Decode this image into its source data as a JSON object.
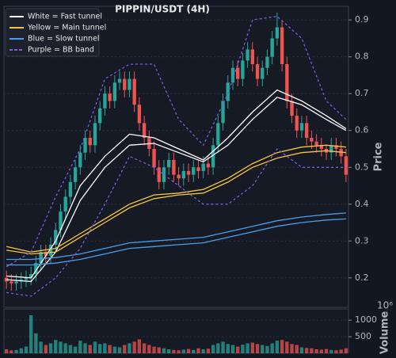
{
  "chart_data": [
    {
      "type": "candlestick",
      "title": "PIPPIN/USDT (4H)",
      "y_label": "Price",
      "up_color": "#26a69a",
      "down_color": "#ef5350",
      "ylim": [
        0.12,
        0.937
      ],
      "yticks": [
        0.2,
        0.3,
        0.4,
        0.5,
        0.6,
        0.7,
        0.8,
        0.9
      ],
      "grid": true,
      "legend": "upper left",
      "open": [
        0.2,
        0.19,
        0.185,
        0.19,
        0.195,
        0.2,
        0.21,
        0.24,
        0.27,
        0.26,
        0.29,
        0.33,
        0.38,
        0.42,
        0.46,
        0.5,
        0.54,
        0.58,
        0.56,
        0.62,
        0.66,
        0.7,
        0.68,
        0.73,
        0.74,
        0.71,
        0.74,
        0.67,
        0.62,
        0.58,
        0.55,
        0.5,
        0.46,
        0.5,
        0.52,
        0.48,
        0.47,
        0.49,
        0.48,
        0.5,
        0.49,
        0.51,
        0.5,
        0.56,
        0.62,
        0.68,
        0.73,
        0.77,
        0.74,
        0.79,
        0.82,
        0.78,
        0.74,
        0.77,
        0.8,
        0.85,
        0.88,
        0.78,
        0.68,
        0.64,
        0.6,
        0.62,
        0.58,
        0.57,
        0.56,
        0.55,
        0.54,
        0.56,
        0.55,
        0.53
      ],
      "high": [
        0.22,
        0.21,
        0.21,
        0.215,
        0.22,
        0.23,
        0.26,
        0.29,
        0.29,
        0.31,
        0.35,
        0.4,
        0.44,
        0.48,
        0.52,
        0.56,
        0.6,
        0.6,
        0.64,
        0.68,
        0.72,
        0.72,
        0.75,
        0.76,
        0.76,
        0.76,
        0.76,
        0.69,
        0.64,
        0.6,
        0.57,
        0.52,
        0.52,
        0.54,
        0.54,
        0.5,
        0.51,
        0.51,
        0.52,
        0.52,
        0.53,
        0.53,
        0.58,
        0.64,
        0.7,
        0.75,
        0.79,
        0.79,
        0.81,
        0.84,
        0.84,
        0.8,
        0.79,
        0.82,
        0.87,
        0.92,
        0.9,
        0.8,
        0.7,
        0.66,
        0.64,
        0.64,
        0.6,
        0.59,
        0.58,
        0.56,
        0.58,
        0.58,
        0.57,
        0.55
      ],
      "low": [
        0.17,
        0.165,
        0.165,
        0.17,
        0.175,
        0.18,
        0.19,
        0.22,
        0.24,
        0.24,
        0.27,
        0.31,
        0.36,
        0.4,
        0.44,
        0.48,
        0.52,
        0.54,
        0.54,
        0.6,
        0.64,
        0.66,
        0.66,
        0.71,
        0.69,
        0.69,
        0.65,
        0.6,
        0.56,
        0.53,
        0.48,
        0.44,
        0.44,
        0.48,
        0.46,
        0.45,
        0.45,
        0.46,
        0.46,
        0.47,
        0.47,
        0.48,
        0.48,
        0.54,
        0.6,
        0.66,
        0.71,
        0.72,
        0.72,
        0.77,
        0.76,
        0.72,
        0.72,
        0.75,
        0.78,
        0.83,
        0.76,
        0.66,
        0.62,
        0.58,
        0.58,
        0.56,
        0.55,
        0.54,
        0.53,
        0.52,
        0.52,
        0.53,
        0.51,
        0.46
      ],
      "close": [
        0.19,
        0.185,
        0.19,
        0.195,
        0.2,
        0.21,
        0.24,
        0.27,
        0.26,
        0.29,
        0.33,
        0.38,
        0.42,
        0.46,
        0.5,
        0.54,
        0.58,
        0.56,
        0.62,
        0.66,
        0.7,
        0.68,
        0.73,
        0.74,
        0.71,
        0.74,
        0.67,
        0.62,
        0.58,
        0.55,
        0.5,
        0.46,
        0.5,
        0.52,
        0.48,
        0.47,
        0.49,
        0.48,
        0.5,
        0.49,
        0.51,
        0.5,
        0.56,
        0.62,
        0.68,
        0.73,
        0.77,
        0.74,
        0.79,
        0.82,
        0.78,
        0.74,
        0.77,
        0.8,
        0.85,
        0.88,
        0.78,
        0.68,
        0.64,
        0.6,
        0.62,
        0.58,
        0.57,
        0.56,
        0.55,
        0.54,
        0.56,
        0.55,
        0.53,
        0.48
      ],
      "line_x": [
        0,
        5,
        10,
        15,
        20,
        25,
        30,
        35,
        40,
        45,
        50,
        55,
        60,
        65,
        69
      ],
      "series": [
        {
          "name": "White = Fast tunnel",
          "color": "#ffffff",
          "dashed": false,
          "upper": [
            0.205,
            0.2,
            0.3,
            0.45,
            0.53,
            0.59,
            0.58,
            0.55,
            0.52,
            0.58,
            0.65,
            0.71,
            0.68,
            0.64,
            0.605
          ],
          "lower": [
            0.195,
            0.19,
            0.27,
            0.41,
            0.5,
            0.56,
            0.565,
            0.54,
            0.515,
            0.56,
            0.63,
            0.69,
            0.67,
            0.63,
            0.6
          ]
        },
        {
          "name": "Yellow = Main tunnel",
          "color": "#f5c542",
          "dashed": false,
          "upper": [
            0.285,
            0.27,
            0.28,
            0.32,
            0.36,
            0.4,
            0.425,
            0.43,
            0.44,
            0.47,
            0.51,
            0.54,
            0.555,
            0.56,
            0.555
          ],
          "lower": [
            0.275,
            0.265,
            0.27,
            0.31,
            0.35,
            0.39,
            0.415,
            0.425,
            0.43,
            0.46,
            0.5,
            0.525,
            0.54,
            0.545,
            0.54
          ]
        },
        {
          "name": "Blue = Slow tunnel",
          "color": "#4a9ee8",
          "dashed": false,
          "upper": [
            0.25,
            0.25,
            0.255,
            0.265,
            0.28,
            0.295,
            0.3,
            0.305,
            0.31,
            0.325,
            0.34,
            0.355,
            0.365,
            0.372,
            0.376
          ],
          "lower": [
            0.235,
            0.235,
            0.24,
            0.25,
            0.265,
            0.28,
            0.285,
            0.29,
            0.295,
            0.31,
            0.325,
            0.34,
            0.35,
            0.357,
            0.36
          ]
        },
        {
          "name": "Purple = BB band",
          "color": "#7b5ce0",
          "dashed": true,
          "upper": [
            0.23,
            0.27,
            0.42,
            0.55,
            0.74,
            0.78,
            0.78,
            0.63,
            0.56,
            0.7,
            0.9,
            0.91,
            0.85,
            0.68,
            0.63
          ],
          "lower": [
            0.16,
            0.15,
            0.2,
            0.28,
            0.4,
            0.53,
            0.5,
            0.45,
            0.4,
            0.4,
            0.45,
            0.55,
            0.5,
            0.5,
            0.5
          ]
        }
      ]
    },
    {
      "type": "bar",
      "y_label": "Volume",
      "offset_text": "10⁶",
      "ylim": [
        0,
        1340
      ],
      "yticks": [
        500,
        1000
      ],
      "grid": true,
      "values": [
        120,
        90,
        100,
        150,
        200,
        1150,
        600,
        350,
        250,
        300,
        400,
        350,
        300,
        250,
        200,
        380,
        300,
        250,
        350,
        280,
        300,
        250,
        200,
        180,
        250,
        300,
        350,
        420,
        300,
        250,
        200,
        180,
        150,
        120,
        100,
        90,
        110,
        130,
        100,
        150,
        120,
        140,
        250,
        300,
        350,
        280,
        250,
        200,
        260,
        300,
        320,
        280,
        250,
        220,
        300,
        380,
        400,
        350,
        280,
        250,
        180,
        160,
        150,
        120,
        110,
        130,
        100,
        90,
        110,
        150
      ]
    }
  ]
}
